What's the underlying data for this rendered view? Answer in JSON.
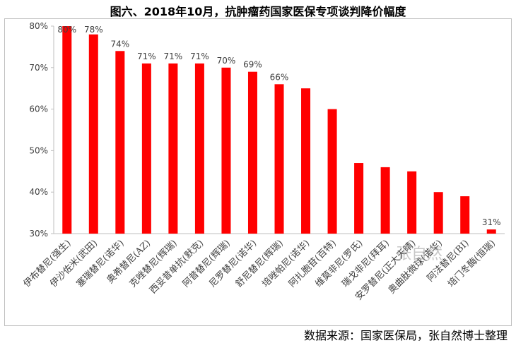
{
  "chart_data": {
    "type": "bar",
    "title": "图六、2018年10月，抗肿瘤药国家医保专项谈判降价幅度",
    "categories": [
      "伊布替尼(强生)",
      "伊沙佐米(武田)",
      "塞瑞替尼(诺华)",
      "奥希替尼(AZ)",
      "克唑替尼(辉瑞)",
      "西妥昔单抗(默克)",
      "阿昔替尼(辉瑞)",
      "尼罗替尼(诺华)",
      "舒尼替尼(辉瑞)",
      "培唑帕尼(诺华)",
      "阿扎胞苷(百特)",
      "维莫非尼(罗氏)",
      "瑞戈非尼(拜耳)",
      "安罗替尼(正大天晴)",
      "奥曲肽微球(诺华)",
      "阿法替尼(BI)",
      "培门冬酶(恒瑞)"
    ],
    "values": [
      80,
      78,
      74,
      71,
      71,
      71,
      70,
      69,
      66,
      65,
      60,
      47,
      46,
      45,
      40,
      39,
      31
    ],
    "data_labels": [
      "80%",
      "78%",
      "74%",
      "71%",
      "71%",
      "71%",
      "70%",
      "69%",
      "66%",
      "",
      "",
      "",
      "",
      "",
      "",
      "",
      "31%"
    ],
    "ylim": [
      30,
      80
    ],
    "yticks": [
      "30%",
      "40%",
      "50%",
      "60%",
      "70%",
      "80%"
    ],
    "bar_color": "#ff0000",
    "grid": false,
    "legend": "none"
  },
  "source_text": "数据来源：国家医保局，张自然博士整理",
  "watermark_text": "张自然"
}
